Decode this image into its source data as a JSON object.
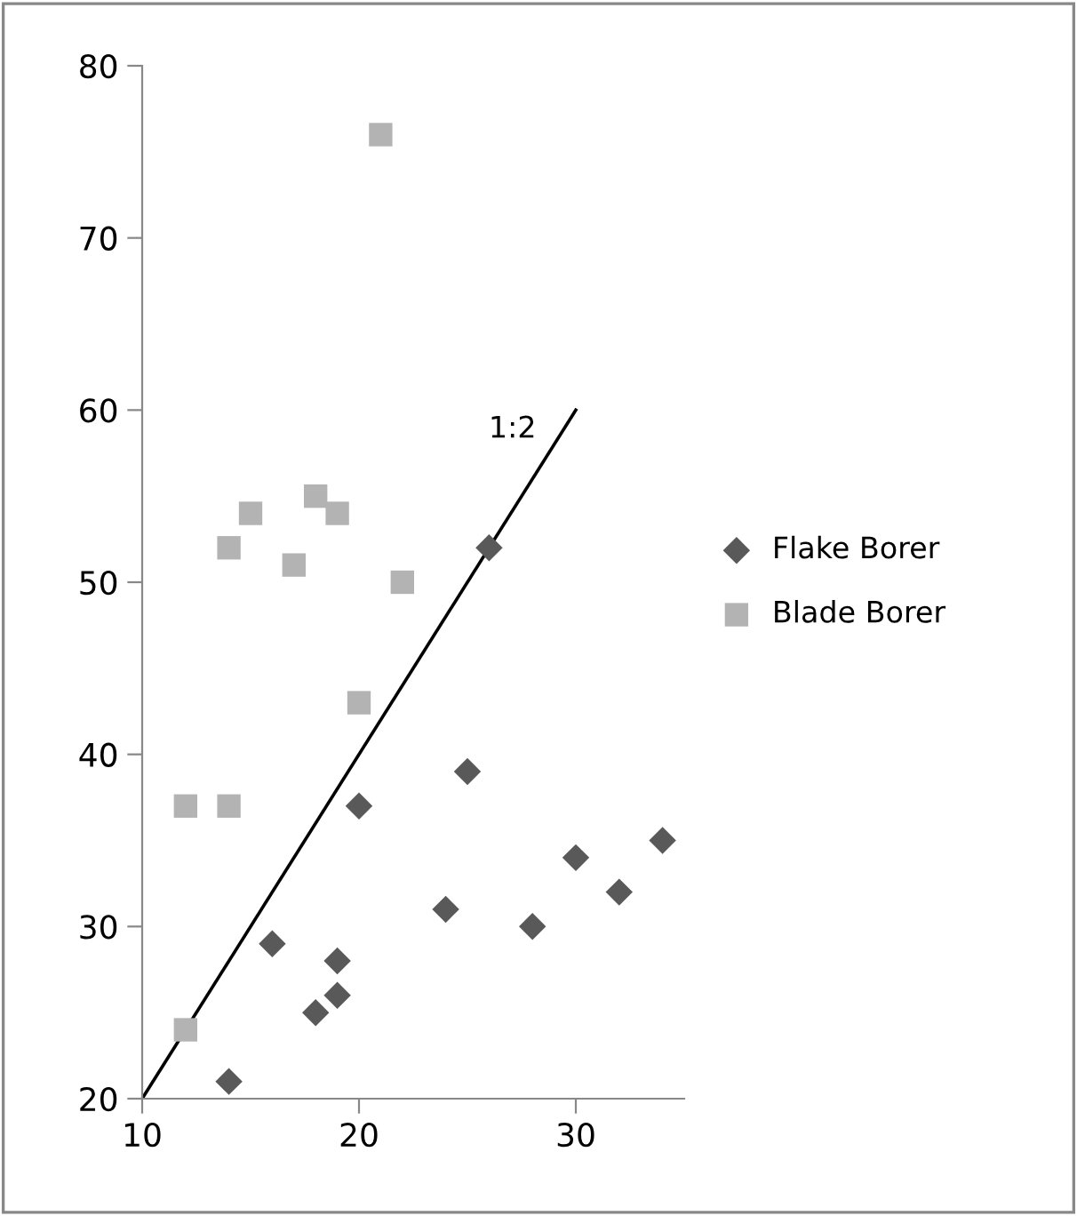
{
  "chart_data": {
    "type": "scatter",
    "xlim": [
      10,
      35
    ],
    "xticks": [
      10,
      20,
      30
    ],
    "ylim": [
      20,
      80
    ],
    "yticks": [
      20,
      30,
      40,
      50,
      60,
      70,
      80
    ],
    "grid": false,
    "legend": "right",
    "series": [
      {
        "name": "Flake Borer",
        "color": "#595959",
        "marker": "diamond",
        "x": [
          14,
          16,
          18,
          19,
          19,
          20,
          24,
          25,
          26,
          28,
          30,
          32,
          34
        ],
        "values": [
          21,
          29,
          25,
          26,
          28,
          37,
          31,
          39,
          52,
          30,
          34,
          32,
          35
        ]
      },
      {
        "name": "Blade Borer",
        "color": "#b3b3b3",
        "marker": "square",
        "x": [
          12,
          12,
          14,
          14,
          15,
          17,
          18,
          19,
          20,
          21,
          22
        ],
        "values": [
          24,
          37,
          37,
          52,
          54,
          51,
          55,
          54,
          43,
          76,
          50
        ]
      },
      {
        "type": "line",
        "color": "#000000",
        "marker": "none",
        "x": [
          10,
          30
        ],
        "values": [
          20,
          60
        ]
      }
    ],
    "annotations": [
      "1:2"
    ]
  }
}
